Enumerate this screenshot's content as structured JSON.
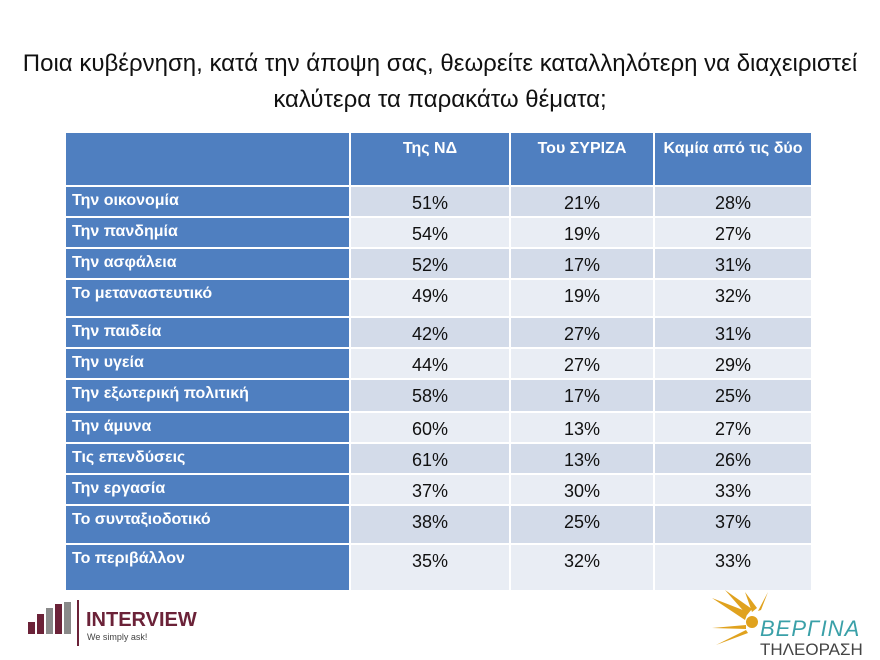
{
  "title": "Ποια κυβέρνηση, κατά την άποψη σας, θεωρείτε καταλληλότερη να διαχειριστεί καλύτερα τα παρακάτω θέματα;",
  "table": {
    "header": [
      "Της ΝΔ",
      "Του ΣΥΡΙΖΑ",
      "Καμία από τις δύο"
    ],
    "rows": [
      [
        "Την οικονομία",
        "51%",
        "21%",
        "28%"
      ],
      [
        "Την πανδημία",
        "54%",
        "19%",
        "27%"
      ],
      [
        "Την ασφάλεια",
        "52%",
        "17%",
        "31%"
      ],
      [
        "Το μεταναστευτικό",
        "49%",
        "19%",
        "32%"
      ],
      [
        "Την παιδεία",
        "42%",
        "27%",
        "31%"
      ],
      [
        "Την υγεία",
        "44%",
        "27%",
        "29%"
      ],
      [
        "Την εξωτερική πολιτική",
        "58%",
        "17%",
        "25%"
      ],
      [
        "Την άμυνα",
        "60%",
        "13%",
        "27%"
      ],
      [
        "Τις επενδύσεις",
        "61%",
        "13%",
        "26%"
      ],
      [
        "Την εργασία",
        "37%",
        "30%",
        "33%"
      ],
      [
        "Το συνταξιοδοτικό",
        "38%",
        "25%",
        "37%"
      ],
      [
        "Το περιβάλλον",
        "35%",
        "32%",
        "33%"
      ]
    ]
  },
  "logos": {
    "interview": "INTERVIEW",
    "tagline": "We simply ask!",
    "vergina": "ΒΕΡΓΙΝΑ",
    "vergina_sub": "ΤΗΛΕΟΡΑΣΗ"
  }
}
